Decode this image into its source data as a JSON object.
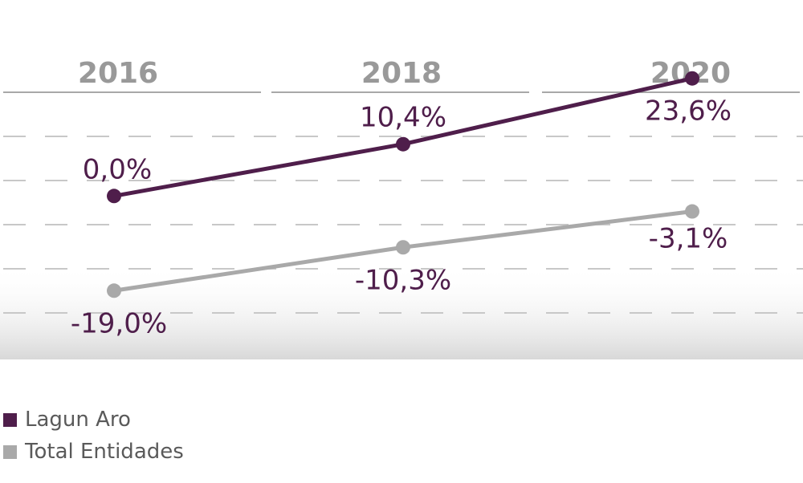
{
  "chart_data": {
    "type": "line",
    "categories": [
      "2016",
      "2018",
      "2020"
    ],
    "series": [
      {
        "name": "Lagun Aro",
        "values": [
          0.0,
          10.4,
          23.6
        ],
        "labels": [
          "0,0%",
          "10,4%",
          "23,6%"
        ],
        "color": "#4f1e4b"
      },
      {
        "name": "Total Entidades",
        "values": [
          -19.0,
          -10.3,
          -3.1
        ],
        "labels": [
          "-19,0%",
          "-10,3%",
          "-3,1%"
        ],
        "color": "#a9a9a9"
      }
    ],
    "ylim": [
      -32,
      30
    ],
    "grid": "dashed horizontal",
    "legend_position": "bottom-left",
    "header_color": "#999999",
    "label_color": "#4f1e4b"
  }
}
